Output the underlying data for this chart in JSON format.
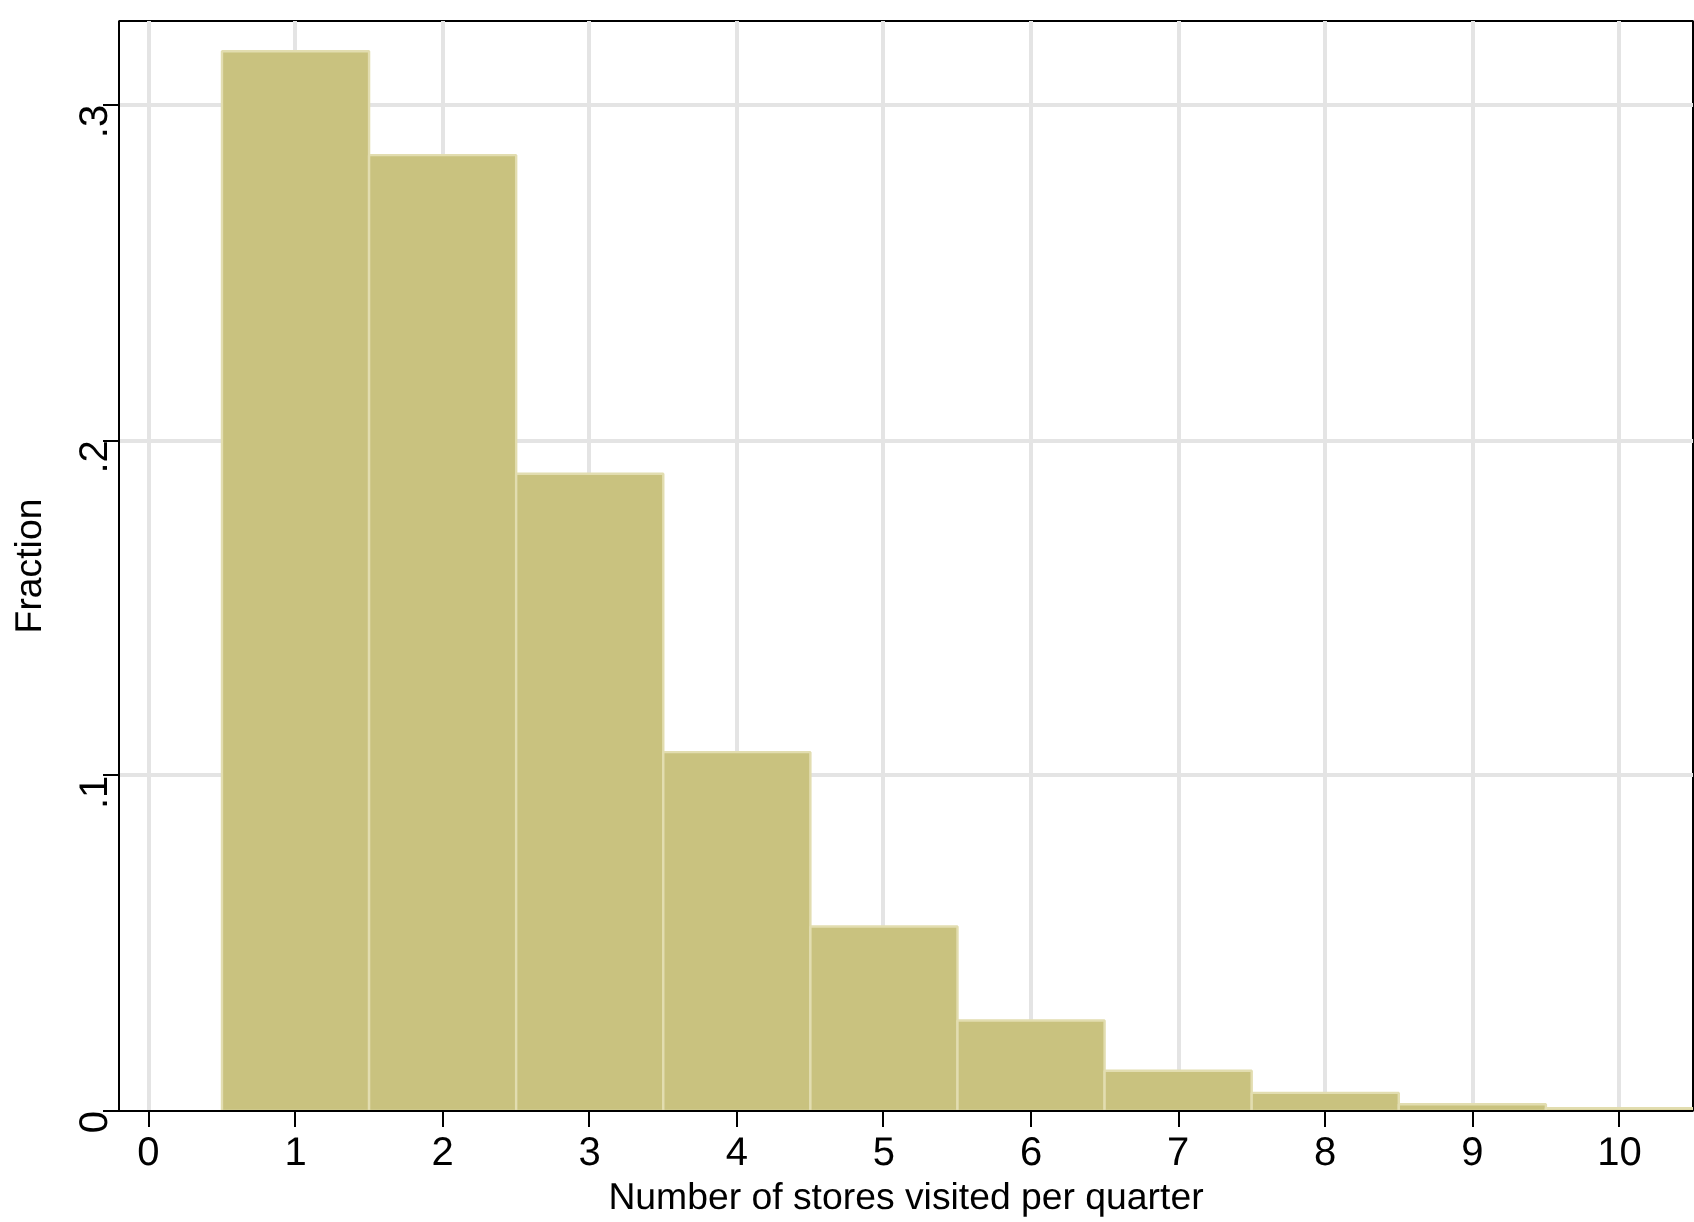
{
  "chart_data": {
    "type": "histogram",
    "xlabel": "Number of stores visited per quarter",
    "ylabel": "Fraction",
    "bins": [
      0.5,
      1.5,
      2.5,
      3.5,
      4.5,
      5.5,
      6.5,
      7.5,
      8.5,
      9.5,
      10.5
    ],
    "values": [
      0.316,
      0.285,
      0.19,
      0.107,
      0.055,
      0.027,
      0.012,
      0.0054,
      0.002,
      0.0008
    ],
    "color": "#c9c27f",
    "xlim": [
      -0.2,
      10.5
    ],
    "ylim": [
      0,
      0.325
    ],
    "xticks": [
      0,
      1,
      2,
      3,
      4,
      5,
      6,
      7,
      8,
      9,
      10
    ],
    "yticks": [
      {
        "value": 0,
        "label": "0"
      },
      {
        "value": 0.1,
        "label": ".1"
      },
      {
        "value": 0.2,
        "label": ".2"
      },
      {
        "value": 0.3,
        "label": ".3"
      }
    ],
    "grid": true
  }
}
